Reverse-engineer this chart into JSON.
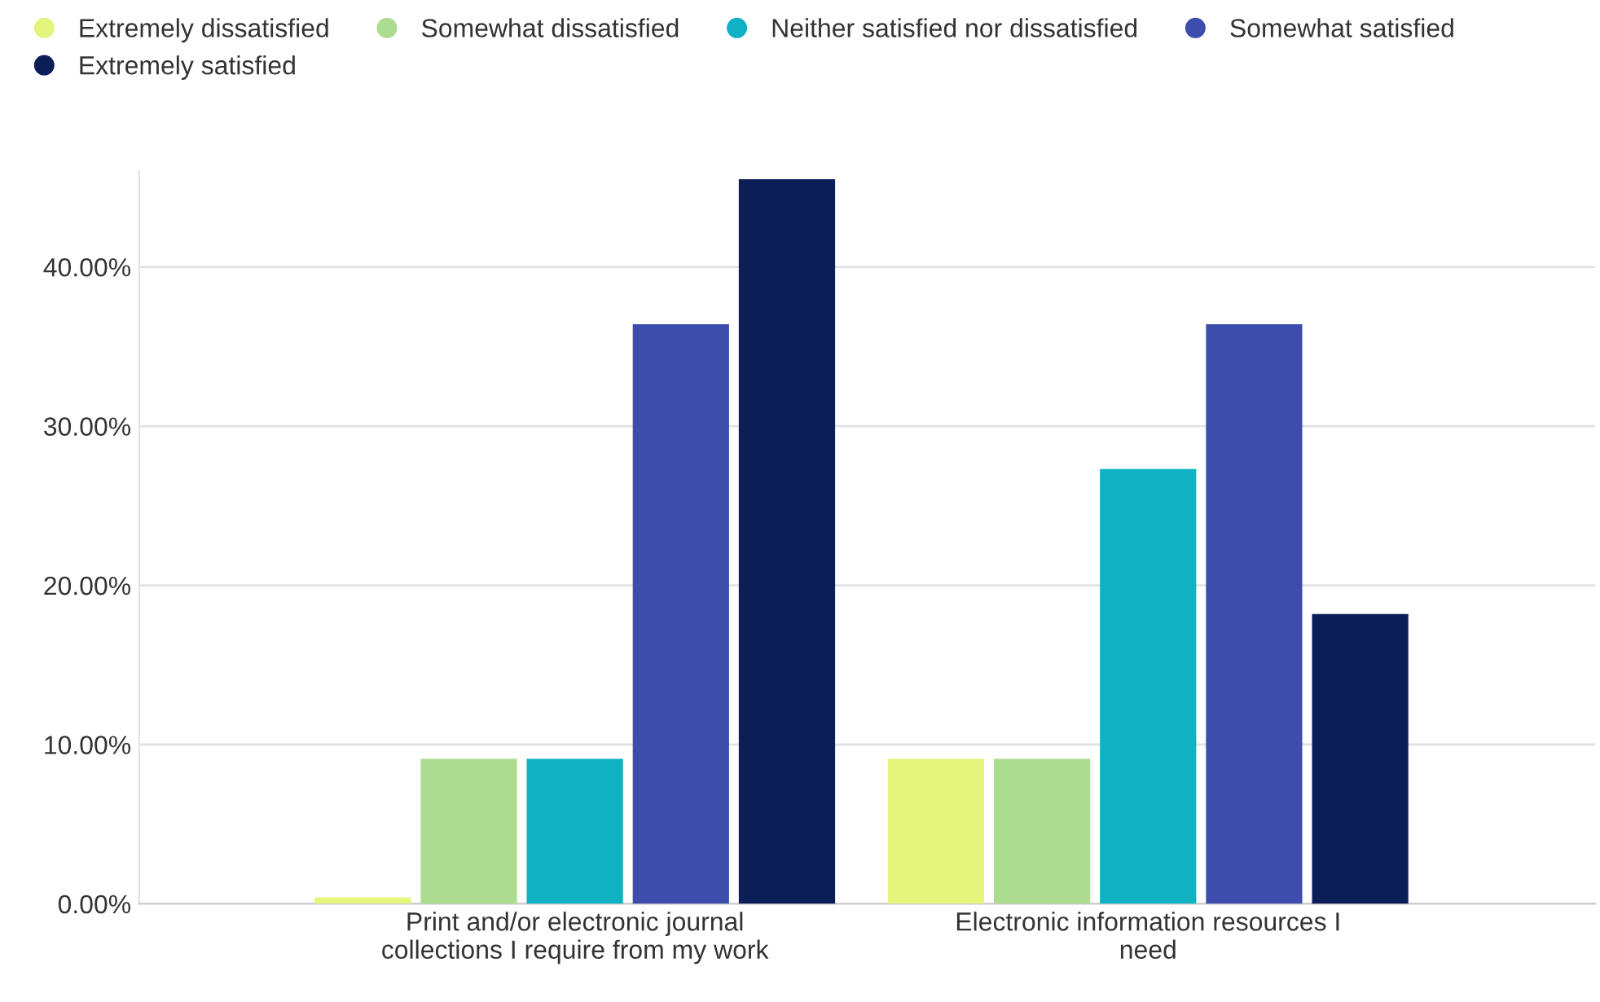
{
  "chart_data": {
    "type": "bar",
    "categories": [
      "Print and/or electronic journal\ncollections I require from my work",
      "Electronic information resources I\nneed"
    ],
    "series": [
      {
        "name": "Extremely dissatisfied",
        "color": "#e4f47c",
        "values": [
          0.4,
          9.1
        ]
      },
      {
        "name": "Somewhat dissatisfied",
        "color": "#acdc8f",
        "values": [
          9.1,
          9.1
        ]
      },
      {
        "name": "Neither satisfied nor dissatisfied",
        "color": "#0fb1c3",
        "values": [
          9.1,
          27.3
        ]
      },
      {
        "name": "Somewhat satisfied",
        "color": "#3c4dab",
        "values": [
          36.4,
          36.4
        ]
      },
      {
        "name": "Extremely satisfied",
        "color": "#0c1e58",
        "values": [
          45.5,
          18.2
        ]
      }
    ],
    "ylim": [
      0,
      46
    ],
    "yticks": [
      {
        "value": 0,
        "label": "0.00%"
      },
      {
        "value": 10,
        "label": "10.00%"
      },
      {
        "value": 20,
        "label": "20.00%"
      },
      {
        "value": 30,
        "label": "30.00%"
      },
      {
        "value": 40,
        "label": "40.00%"
      }
    ],
    "grid": "y",
    "legend": "top left"
  }
}
